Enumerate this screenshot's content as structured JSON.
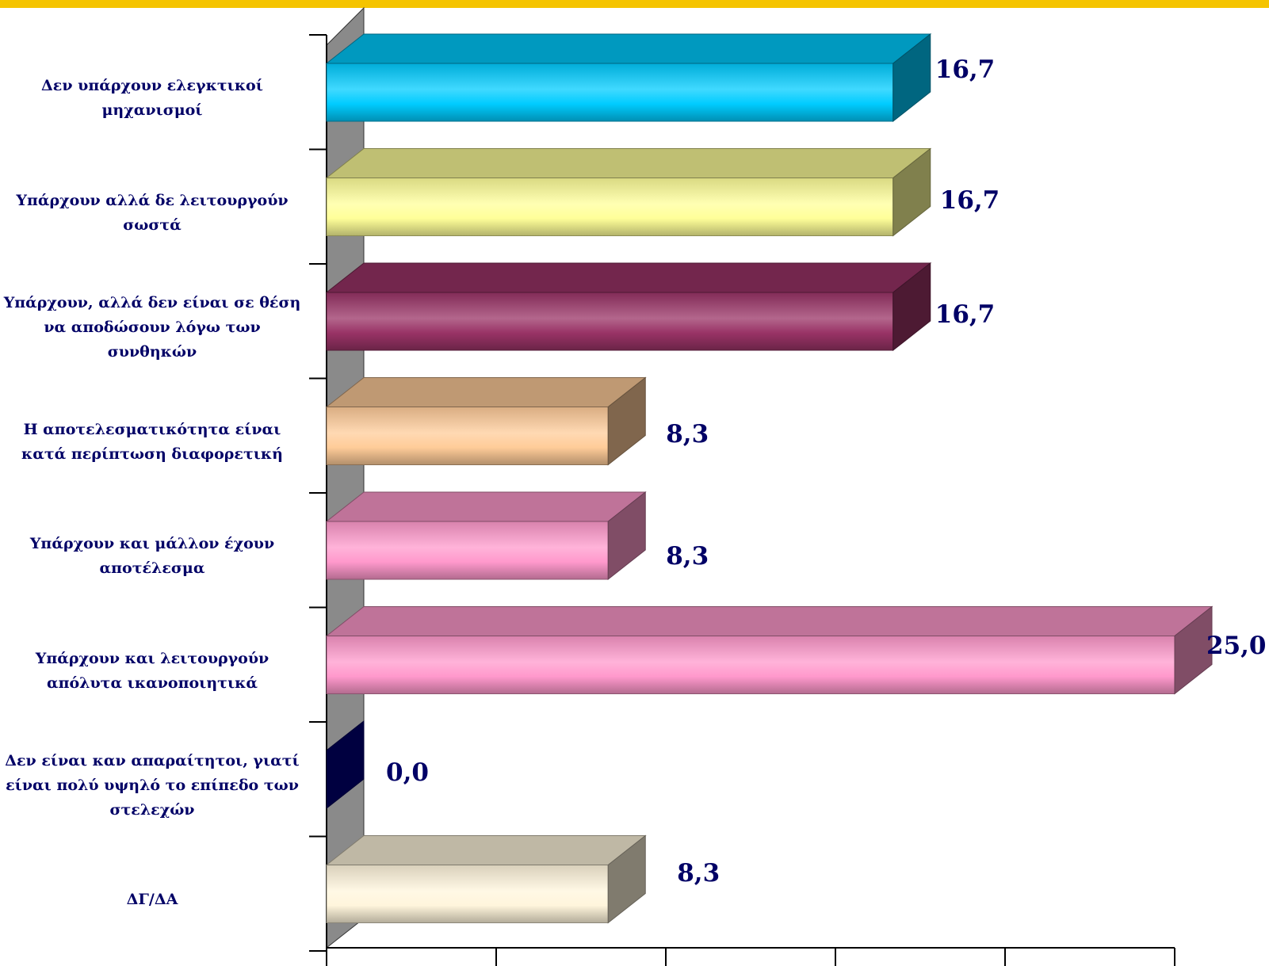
{
  "chart_data": {
    "type": "bar",
    "orientation": "horizontal",
    "style": "3d",
    "title": "",
    "xlabel": "",
    "ylabel": "",
    "xlim": [
      0,
      25
    ],
    "categories": [
      "Δεν υπάρχουν ελεγκτικοί μηχανισμοί",
      "Υπάρχουν αλλά δε λειτουργούν σωστά",
      "Υπάρχουν, αλλά δεν είναι σε θέση να αποδώσουν λόγω των συνθηκών",
      "Η αποτελεσματικότητα είναι κατά περίπτωση διαφορετική",
      "Υπάρχουν και μάλλον έχουν αποτέλεσμα",
      "Υπάρχουν και λειτουργούν απόλυτα ικανοποιητικά",
      "Δεν είναι καν απαραίτητοι, γιατί είναι πολύ υψηλό το επίπεδο των στελεχών",
      "ΔΓ/ΔΑ"
    ],
    "values": [
      16.7,
      16.7,
      16.7,
      8.3,
      8.3,
      25.0,
      0.0,
      8.3
    ],
    "value_labels": [
      "16,7",
      "16,7",
      "16,7",
      "8,3",
      "8,3",
      "25,0",
      "0,0",
      "8,3"
    ],
    "bar_colors": [
      "#00ccff",
      "#ffff99",
      "#993366",
      "#ffcc99",
      "#ff99cc",
      "#ff99cc",
      "#000080",
      "#fff5dc"
    ],
    "label_color": "#000066",
    "grid": false,
    "legend": "none"
  }
}
